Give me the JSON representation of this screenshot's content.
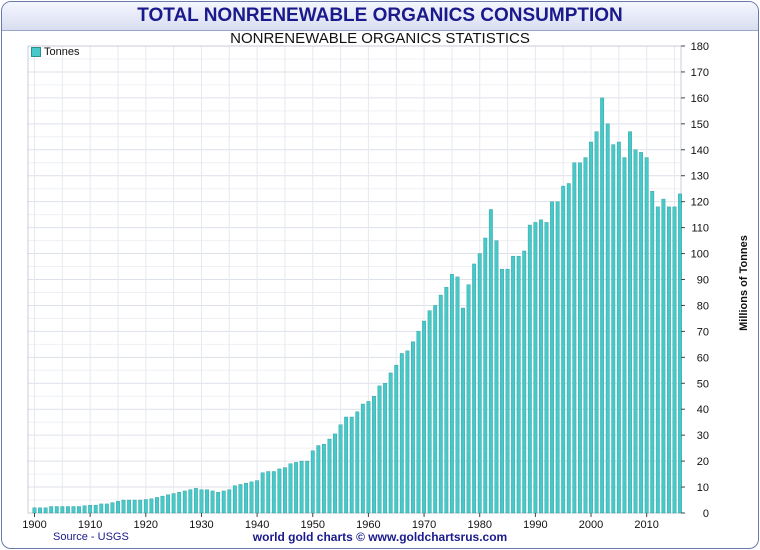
{
  "chart_data": {
    "type": "bar",
    "title": "TOTAL NONRENEWABLE ORGANICS CONSUMPTION",
    "subtitle": "NONRENEWABLE ORGANICS STATISTICS",
    "ylabel": "Millions of Tonnes",
    "xlabel": "",
    "legend": [
      "Tonnes"
    ],
    "legend_position": "top-left",
    "ylim": [
      0,
      180
    ],
    "xlim": [
      1900,
      2015
    ],
    "y_ticks": [
      "0",
      "10",
      "20",
      "30",
      "40",
      "50",
      "60",
      "70",
      "80",
      "90",
      "100",
      "110",
      "120",
      "130",
      "140",
      "150",
      "160",
      "170",
      "180"
    ],
    "x_ticks": [
      "1900",
      "1910",
      "1920",
      "1930",
      "1940",
      "1950",
      "1960",
      "1970",
      "1980",
      "1990",
      "2000",
      "2010"
    ],
    "bar_color": "#47c9c9",
    "series": [
      {
        "name": "Tonnes",
        "start_year": 1900,
        "values": [
          2,
          2,
          2,
          2.5,
          2.5,
          2.5,
          2.5,
          2.5,
          2.5,
          2.8,
          3,
          3,
          3.5,
          3.5,
          4,
          4.5,
          5,
          5,
          5,
          5,
          5.2,
          5.5,
          6,
          6.5,
          7,
          7.5,
          8,
          8.5,
          9,
          9.5,
          9,
          9,
          8.5,
          8,
          8.5,
          9,
          10.5,
          11,
          11.5,
          12,
          12.5,
          15.5,
          16,
          16,
          17,
          17.5,
          19,
          19.5,
          20,
          20,
          24,
          26,
          26.5,
          28.5,
          30.5,
          34,
          37,
          37,
          39,
          42,
          43,
          45,
          49,
          50,
          54,
          57,
          61.5,
          62.5,
          66,
          70,
          74,
          78,
          80,
          84,
          87,
          92,
          91,
          79,
          88,
          96,
          100,
          106,
          117,
          105,
          94,
          94,
          99,
          99,
          101,
          111,
          112,
          113,
          112,
          120,
          120,
          126,
          127,
          135,
          135,
          137,
          143,
          147,
          160,
          150,
          142,
          143,
          137,
          147,
          140,
          139,
          137,
          124,
          118,
          121,
          118,
          118,
          123
        ]
      }
    ],
    "source": "Source - USGS",
    "footer": "world gold charts © www.goldchartsrus.com"
  }
}
